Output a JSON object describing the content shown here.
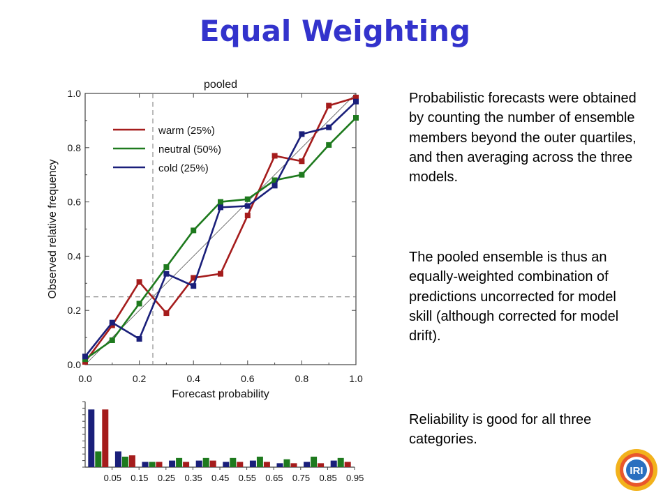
{
  "slide": {
    "title": "Equal Weighting",
    "paragraphs": [
      "Probabilistic forecasts were obtained by counting the number of ensemble members beyond the outer quartiles, and then averaging across the three models.",
      "The pooled ensemble is thus an equally-weighted combination of predictions uncorrected for model skill (although corrected for model drift).",
      "Reliability is good for all three categories."
    ]
  },
  "logo": {
    "text": "IRI",
    "icon": "iri-logo"
  },
  "chart_data": [
    {
      "type": "line",
      "title": "pooled",
      "xlabel": "Forecast probability",
      "ylabel": "Observed relative frequency",
      "xlim": [
        0,
        1
      ],
      "ylim": [
        0,
        1
      ],
      "xticks": [
        "0.0",
        "0.2",
        "0.4",
        "0.6",
        "0.8",
        "1.0"
      ],
      "yticks": [
        "0.0",
        "0.2",
        "0.4",
        "0.6",
        "0.8",
        "1.0"
      ],
      "reference_lines": {
        "diagonal": true,
        "vertical_x": 0.25,
        "horizontal_y": 0.25
      },
      "legend_position": "top-left",
      "x": [
        0.0,
        0.1,
        0.2,
        0.3,
        0.4,
        0.5,
        0.6,
        0.7,
        0.8,
        0.9,
        1.0
      ],
      "series": [
        {
          "name": "warm (25%)",
          "color": "#a51c1c",
          "values": [
            0.01,
            0.145,
            0.305,
            0.19,
            0.32,
            0.335,
            0.55,
            0.77,
            0.75,
            0.955,
            0.985
          ]
        },
        {
          "name": "neutral (50%)",
          "color": "#1e7a1e",
          "values": [
            0.02,
            0.09,
            0.225,
            0.36,
            0.495,
            0.6,
            0.61,
            0.68,
            0.7,
            0.81,
            0.91
          ]
        },
        {
          "name": "cold (25%)",
          "color": "#1a1f7a",
          "values": [
            0.03,
            0.155,
            0.095,
            0.335,
            0.29,
            0.58,
            0.585,
            0.66,
            0.85,
            0.875,
            0.97
          ]
        }
      ]
    },
    {
      "type": "bar",
      "categories": [
        "0.05",
        "0.15",
        "0.25",
        "0.35",
        "0.45",
        "0.55",
        "0.65",
        "0.75",
        "0.85",
        "0.95"
      ],
      "series": [
        {
          "name": "cold (25%)",
          "color": "#1a1f7a",
          "values": [
            0.44,
            0.12,
            0.04,
            0.05,
            0.05,
            0.04,
            0.05,
            0.03,
            0.04,
            0.05
          ]
        },
        {
          "name": "neutral (50%)",
          "color": "#1e7a1e",
          "values": [
            0.12,
            0.08,
            0.04,
            0.07,
            0.07,
            0.07,
            0.08,
            0.06,
            0.08,
            0.07
          ]
        },
        {
          "name": "warm (25%)",
          "color": "#a51c1c",
          "values": [
            0.44,
            0.09,
            0.04,
            0.04,
            0.05,
            0.04,
            0.04,
            0.03,
            0.03,
            0.04
          ]
        }
      ]
    }
  ]
}
